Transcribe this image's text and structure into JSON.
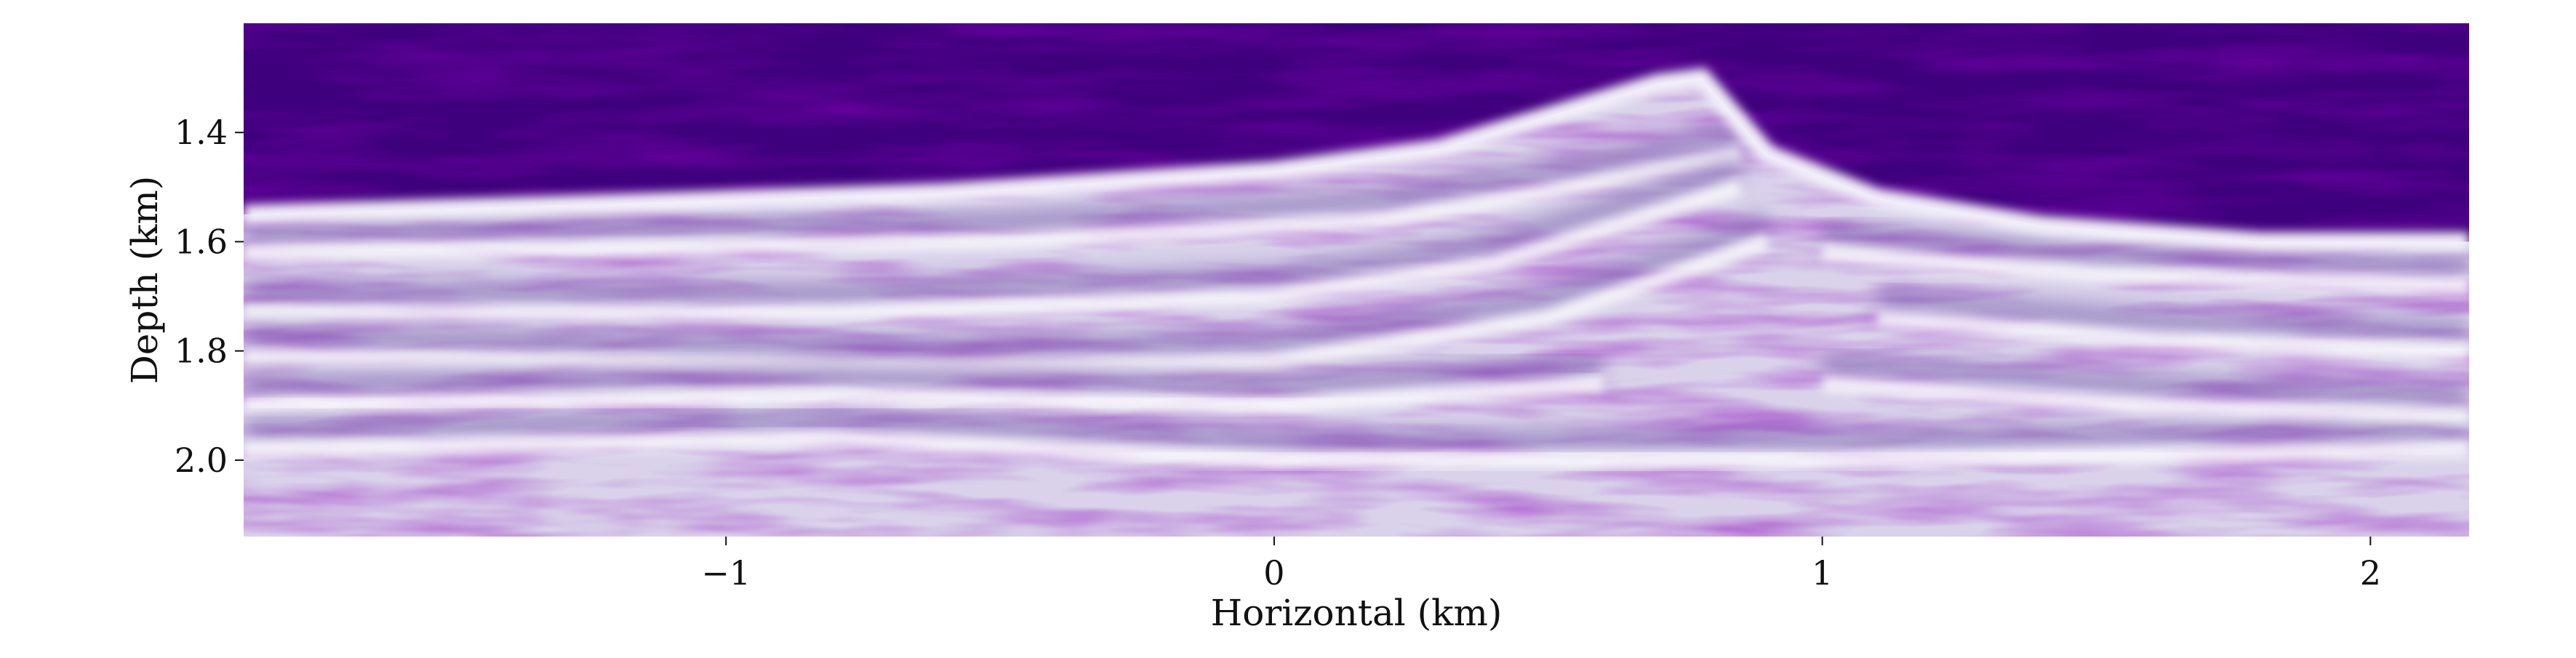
{
  "chart_data": {
    "type": "heatmap",
    "title": "",
    "xlabel": "Horizontal (km)",
    "ylabel": "Depth (km)",
    "xlim": [
      -1.88,
      2.18
    ],
    "ylim": [
      2.14,
      1.2
    ],
    "y_inverted": true,
    "x_ticks": [
      {
        "value": -1,
        "label": "−1"
      },
      {
        "value": 0,
        "label": "0"
      },
      {
        "value": 1,
        "label": "1"
      },
      {
        "value": 2,
        "label": "2"
      }
    ],
    "y_ticks": [
      {
        "value": 1.4,
        "label": "1.4"
      },
      {
        "value": 1.6,
        "label": "1.6"
      },
      {
        "value": 1.8,
        "label": "1.8"
      },
      {
        "value": 2.0,
        "label": "2.0"
      }
    ],
    "grid": false,
    "colormap": "Purples_r",
    "colors": {
      "low": "#3f007d",
      "high": "#fcfbfd"
    },
    "seafloor_profile": [
      {
        "x": -1.88,
        "depth": 1.55
      },
      {
        "x": -1.2,
        "depth": 1.53
      },
      {
        "x": -0.6,
        "depth": 1.51
      },
      {
        "x": 0.0,
        "depth": 1.47
      },
      {
        "x": 0.3,
        "depth": 1.43
      },
      {
        "x": 0.5,
        "depth": 1.37
      },
      {
        "x": 0.7,
        "depth": 1.31
      },
      {
        "x": 0.78,
        "depth": 1.3
      },
      {
        "x": 0.9,
        "depth": 1.44
      },
      {
        "x": 1.1,
        "depth": 1.52
      },
      {
        "x": 1.4,
        "depth": 1.57
      },
      {
        "x": 1.8,
        "depth": 1.6
      },
      {
        "x": 2.18,
        "depth": 1.6
      }
    ],
    "reflectors": [
      {
        "points": [
          {
            "x": -1.88,
            "depth": 1.62
          },
          {
            "x": -0.5,
            "depth": 1.6
          },
          {
            "x": 0.2,
            "depth": 1.56
          },
          {
            "x": 0.55,
            "depth": 1.5
          },
          {
            "x": 0.85,
            "depth": 1.44
          }
        ]
      },
      {
        "points": [
          {
            "x": -1.88,
            "depth": 1.73
          },
          {
            "x": -0.8,
            "depth": 1.73
          },
          {
            "x": 0.0,
            "depth": 1.7
          },
          {
            "x": 0.4,
            "depth": 1.64
          },
          {
            "x": 0.85,
            "depth": 1.5
          }
        ]
      },
      {
        "points": [
          {
            "x": -1.88,
            "depth": 1.81
          },
          {
            "x": -0.6,
            "depth": 1.83
          },
          {
            "x": 0.0,
            "depth": 1.82
          },
          {
            "x": 0.5,
            "depth": 1.74
          },
          {
            "x": 0.9,
            "depth": 1.6
          }
        ]
      },
      {
        "points": [
          {
            "x": -1.88,
            "depth": 1.9
          },
          {
            "x": -0.8,
            "depth": 1.88
          },
          {
            "x": 0.0,
            "depth": 1.9
          },
          {
            "x": 0.6,
            "depth": 1.86
          }
        ]
      },
      {
        "points": [
          {
            "x": -1.88,
            "depth": 1.98
          },
          {
            "x": -0.8,
            "depth": 1.96
          },
          {
            "x": 0.0,
            "depth": 2.0
          },
          {
            "x": 1.0,
            "depth": 2.0
          },
          {
            "x": 2.18,
            "depth": 1.98
          }
        ]
      },
      {
        "points": [
          {
            "x": 1.0,
            "depth": 1.62
          },
          {
            "x": 1.5,
            "depth": 1.66
          },
          {
            "x": 2.18,
            "depth": 1.68
          }
        ]
      },
      {
        "points": [
          {
            "x": 1.1,
            "depth": 1.74
          },
          {
            "x": 1.6,
            "depth": 1.78
          },
          {
            "x": 2.18,
            "depth": 1.8
          }
        ]
      },
      {
        "points": [
          {
            "x": 1.0,
            "depth": 1.86
          },
          {
            "x": 1.6,
            "depth": 1.9
          },
          {
            "x": 2.18,
            "depth": 1.92
          }
        ]
      }
    ]
  }
}
